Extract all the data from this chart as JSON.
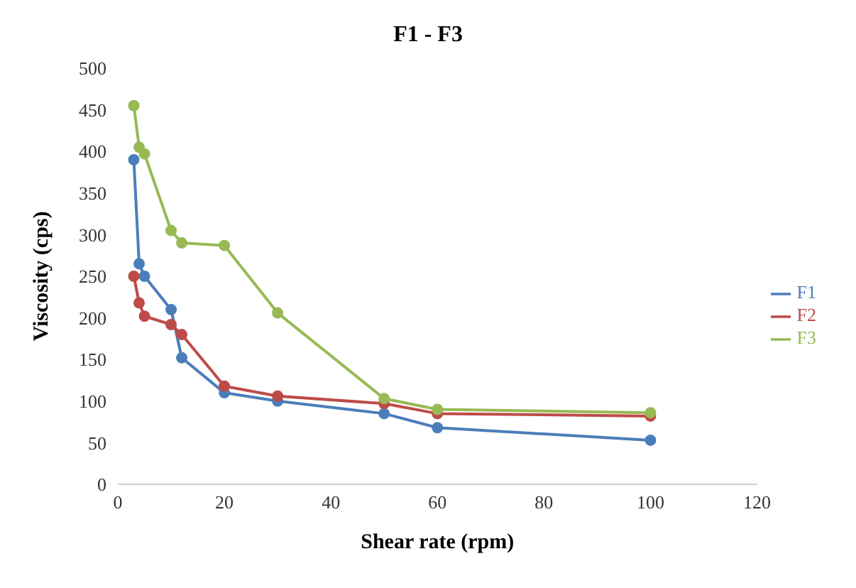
{
  "chart_data": {
    "type": "line",
    "title": "F1 - F3",
    "xlabel": "Shear rate (rpm)",
    "ylabel": "Viscosity (cps)",
    "x": [
      3,
      4,
      5,
      10,
      12,
      20,
      30,
      50,
      60,
      100
    ],
    "series": [
      {
        "name": "F1",
        "color": "#4a7ebb",
        "values": [
          390,
          265,
          250,
          210,
          152,
          110,
          100,
          85,
          68,
          53
        ]
      },
      {
        "name": "F2",
        "color": "#be4b48",
        "values": [
          250,
          218,
          202,
          192,
          180,
          118,
          106,
          97,
          85,
          82
        ]
      },
      {
        "name": "F3",
        "color": "#98b954",
        "values": [
          455,
          405,
          397,
          305,
          290,
          287,
          206,
          103,
          90,
          86
        ]
      }
    ],
    "xlim": [
      0,
      120
    ],
    "xticks": [
      0,
      20,
      40,
      60,
      80,
      100,
      120
    ],
    "ylim": [
      0,
      500
    ],
    "yticks": [
      0,
      50,
      100,
      150,
      200,
      250,
      300,
      350,
      400,
      450,
      500
    ],
    "grid": false,
    "legend": "right",
    "marker": "circle",
    "line_style": "solid"
  }
}
